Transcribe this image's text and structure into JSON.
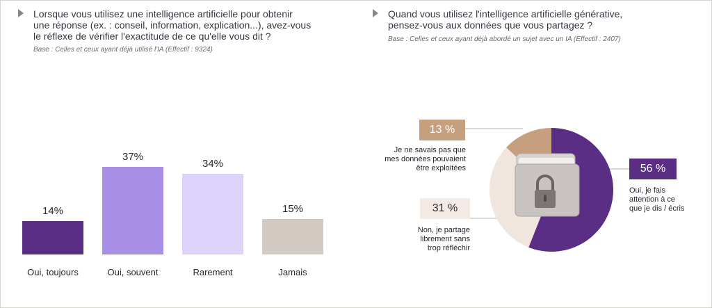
{
  "left": {
    "question": "Lorsque vous utilisez une intelligence artificielle pour obtenir\nune réponse (ex. : conseil, information, explication...), avez-vous\nle réflexe de vérifier l'exactitude de ce qu'elle vous dit ?",
    "base": "Base : Celles et ceux ayant déjà utilisé l'IA (Effectif : 9324)"
  },
  "right": {
    "question": "Quand vous utilisez l'intelligence artificielle générative,\npensez-vous aux données que vous partagez ?",
    "base": "Base : Celles et ceux ayant déjà abordé un sujet avec un IA (Effectif : 2407)",
    "badges": {
      "n13": "13 %",
      "n56": "56 %",
      "n31": "31 %"
    },
    "labels": {
      "n13": "Je ne savais pas que\nmes données pouvaient\nêtre exploitées",
      "n56": "Oui, je fais\nattention à ce\nque je dis / écris",
      "n31": "Non, je partage\nlibrement sans\ntrop réfléchir"
    }
  },
  "chart_data": [
    {
      "type": "bar",
      "categories": [
        "Oui, toujours",
        "Oui, souvent",
        "Rarement",
        "Jamais"
      ],
      "values": [
        14,
        37,
        34,
        15
      ],
      "value_labels": [
        "14%",
        "37%",
        "34%",
        "15%"
      ],
      "colors": [
        "#5b2e86",
        "#a98ee6",
        "#ddd3fa",
        "#d3cac4"
      ],
      "ylim": [
        0,
        40
      ]
    },
    {
      "type": "pie",
      "categories": [
        "Oui, je fais attention à ce que je dis / écris",
        "Non, je partage librement sans trop réfléchir",
        "Je ne savais pas que mes données pouvaient être exploitées"
      ],
      "values": [
        56,
        31,
        13
      ],
      "colors": [
        "#5b2e86",
        "#f1e6dd",
        "#c6a07e"
      ]
    }
  ]
}
